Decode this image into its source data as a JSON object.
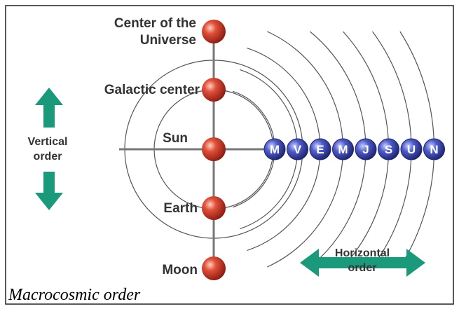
{
  "nodes": [
    {
      "label": [
        "Center of the",
        "Universe"
      ]
    },
    {
      "label": [
        "Galactic center"
      ]
    },
    {
      "label": [
        "Sun"
      ]
    },
    {
      "label": [
        "Earth"
      ]
    },
    {
      "label": [
        "Moon"
      ]
    }
  ],
  "planets": [
    "M",
    "V",
    "E",
    "M",
    "J",
    "S",
    "U",
    "N"
  ],
  "vertical_arrow": [
    "Vertical",
    "order"
  ],
  "horizontal_arrow": [
    "Horizontal",
    "order"
  ],
  "caption": "Macrocosmic order"
}
